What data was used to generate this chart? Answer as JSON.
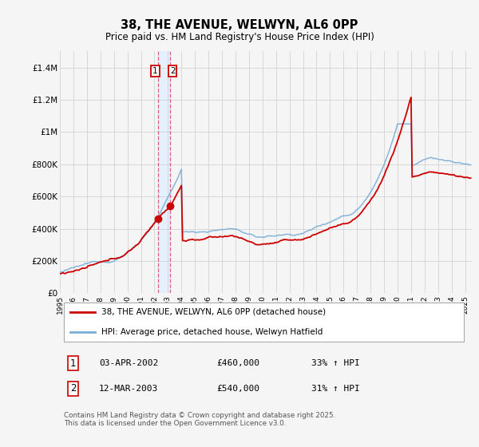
{
  "title": "38, THE AVENUE, WELWYN, AL6 0PP",
  "subtitle": "Price paid vs. HM Land Registry's House Price Index (HPI)",
  "legend_line1": "38, THE AVENUE, WELWYN, AL6 0PP (detached house)",
  "legend_line2": "HPI: Average price, detached house, Welwyn Hatfield",
  "transaction1_date": "03-APR-2002",
  "transaction1_price": "£460,000",
  "transaction1_hpi": "33% ↑ HPI",
  "transaction2_date": "12-MAR-2003",
  "transaction2_price": "£540,000",
  "transaction2_hpi": "31% ↑ HPI",
  "footer": "Contains HM Land Registry data © Crown copyright and database right 2025.\nThis data is licensed under the Open Government Licence v3.0.",
  "red_color": "#cc0000",
  "blue_color": "#7aaed6",
  "vline_color": "#e06080",
  "vband_color": "#ddeeff",
  "grid_color": "#cccccc",
  "background_color": "#f5f5f5",
  "ylim_max": 1500000,
  "ylabel_ticks": [
    0,
    200000,
    400000,
    600000,
    800000,
    1000000,
    1200000,
    1400000
  ],
  "ylabel_labels": [
    "£0",
    "£200K",
    "£400K",
    "£600K",
    "£800K",
    "£1M",
    "£1.2M",
    "£1.4M"
  ]
}
